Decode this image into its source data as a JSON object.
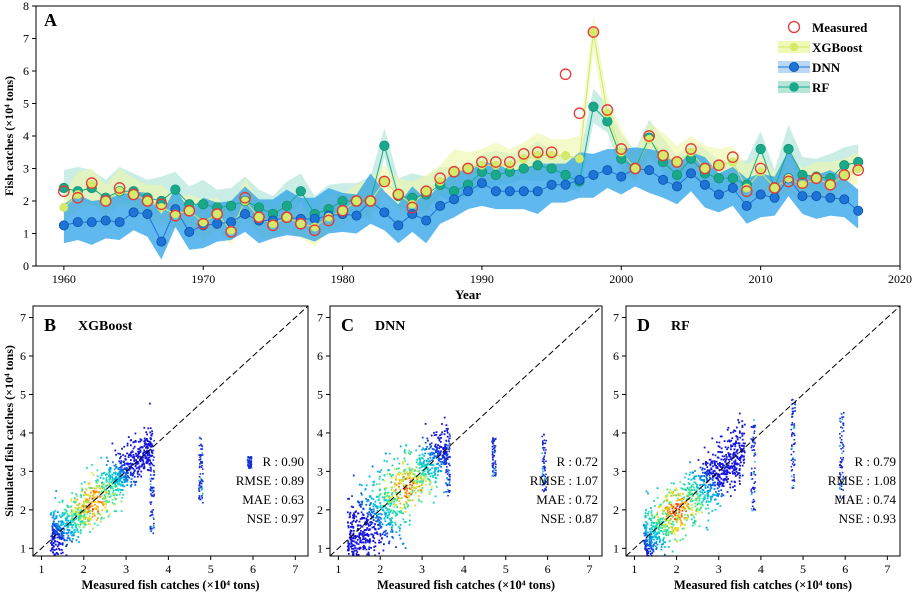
{
  "chart_data": [
    {
      "panel": "A",
      "type": "line",
      "xlabel": "Year",
      "ylabel": "Fish catches (×10⁴ tons)",
      "xlim": [
        1958,
        2020
      ],
      "ylim": [
        0,
        8
      ],
      "xticks": [
        1960,
        1970,
        1980,
        1990,
        2000,
        2010,
        2020
      ],
      "yticks": [
        0,
        1,
        2,
        3,
        4,
        5,
        6,
        7,
        8
      ],
      "x": [
        1960,
        1961,
        1962,
        1963,
        1964,
        1965,
        1966,
        1967,
        1968,
        1969,
        1970,
        1971,
        1972,
        1973,
        1974,
        1975,
        1976,
        1977,
        1978,
        1979,
        1980,
        1981,
        1982,
        1983,
        1984,
        1985,
        1986,
        1987,
        1988,
        1989,
        1990,
        1991,
        1992,
        1993,
        1994,
        1995,
        1996,
        1997,
        1998,
        1999,
        2000,
        2001,
        2002,
        2003,
        2004,
        2005,
        2006,
        2007,
        2008,
        2009,
        2010,
        2011,
        2012,
        2013,
        2014,
        2015,
        2016,
        2017
      ],
      "series": [
        {
          "name": "Measured",
          "color": "#e53935",
          "marker": "open-circle",
          "values": [
            2.3,
            2.1,
            2.55,
            2.0,
            2.4,
            2.2,
            2.0,
            1.9,
            1.55,
            1.7,
            1.3,
            1.6,
            1.05,
            2.1,
            1.5,
            1.25,
            1.5,
            1.3,
            1.1,
            1.4,
            1.7,
            2.0,
            2.0,
            2.6,
            2.2,
            1.8,
            2.3,
            2.7,
            2.9,
            3.0,
            3.2,
            3.2,
            3.2,
            3.45,
            3.5,
            3.5,
            5.9,
            4.7,
            7.2,
            4.8,
            3.6,
            3.0,
            4.0,
            3.4,
            3.2,
            3.6,
            3.0,
            3.1,
            3.35,
            2.3,
            3.0,
            2.4,
            2.6,
            2.55,
            2.7,
            2.5,
            2.8,
            2.95
          ]
        },
        {
          "name": "XGBoost",
          "color": "#d6ea6a",
          "marker": "filled-circle",
          "values": [
            1.8,
            2.2,
            2.5,
            2.0,
            2.3,
            2.2,
            2.0,
            1.8,
            1.6,
            1.7,
            1.35,
            1.6,
            1.1,
            2.0,
            1.5,
            1.3,
            1.5,
            1.3,
            1.2,
            1.5,
            1.7,
            2.0,
            2.0,
            2.6,
            2.2,
            1.9,
            2.3,
            2.6,
            2.9,
            3.0,
            3.1,
            3.1,
            3.1,
            3.3,
            3.4,
            3.4,
            3.4,
            3.3,
            7.2,
            4.7,
            3.5,
            3.0,
            3.9,
            3.4,
            3.2,
            3.5,
            3.0,
            3.1,
            3.2,
            2.4,
            2.9,
            2.4,
            2.7,
            2.5,
            2.7,
            2.5,
            2.8,
            3.0
          ]
        },
        {
          "name": "DNN",
          "color": "#1e73d6",
          "marker": "filled-circle",
          "values": [
            1.25,
            1.35,
            1.35,
            1.4,
            1.35,
            1.65,
            1.6,
            0.75,
            1.75,
            1.05,
            1.25,
            1.3,
            1.35,
            1.6,
            1.4,
            1.4,
            1.5,
            1.45,
            1.45,
            1.55,
            1.6,
            1.55,
            2.0,
            1.65,
            1.25,
            1.6,
            1.4,
            1.85,
            2.05,
            2.3,
            2.55,
            2.3,
            2.3,
            2.3,
            2.3,
            2.5,
            2.5,
            2.65,
            2.8,
            2.95,
            2.75,
            3.0,
            2.95,
            2.65,
            2.45,
            2.85,
            2.5,
            2.2,
            2.4,
            1.85,
            2.2,
            2.1,
            2.7,
            2.15,
            2.15,
            2.1,
            2.05,
            1.7
          ]
        },
        {
          "name": "RF",
          "color": "#19a88a",
          "marker": "filled-circle",
          "values": [
            2.4,
            2.3,
            2.4,
            2.1,
            2.3,
            2.3,
            2.1,
            2.0,
            2.35,
            1.9,
            1.9,
            1.8,
            1.85,
            2.0,
            1.8,
            1.6,
            1.85,
            2.3,
            1.6,
            1.75,
            2.0,
            2.0,
            2.0,
            3.7,
            2.15,
            2.1,
            2.2,
            2.5,
            2.3,
            2.5,
            2.9,
            2.8,
            2.9,
            3.0,
            3.1,
            3.0,
            2.8,
            2.6,
            4.9,
            4.45,
            3.3,
            3.0,
            3.95,
            3.2,
            2.8,
            3.3,
            2.85,
            2.7,
            2.7,
            2.5,
            3.6,
            2.4,
            3.6,
            2.8,
            2.75,
            2.7,
            3.1,
            3.2
          ]
        }
      ]
    },
    {
      "panel": "B",
      "type": "scatter",
      "title": "XGBoost",
      "xlabel": "Measured fish catches (×10⁴ tons)",
      "ylabel": "Simulated fish catches (×10⁴ tons)",
      "xlim": [
        0.8,
        7.3
      ],
      "ylim": [
        0.8,
        7.3
      ],
      "stats": {
        "R": "R : 0.90",
        "RMSE": "RMSE : 0.89",
        "MAE": "MAE : 0.63",
        "NSE": "NSE : 0.97"
      }
    },
    {
      "panel": "C",
      "type": "scatter",
      "title": "DNN",
      "xlabel": "Measured fish catches (×10⁴ tons)",
      "ylabel": "",
      "xlim": [
        0.8,
        7.3
      ],
      "ylim": [
        0.8,
        7.3
      ],
      "stats": {
        "R": "R : 0.72",
        "RMSE": "RMSE : 1.07",
        "MAE": "MAE : 0.72",
        "NSE": "NSE : 0.87"
      }
    },
    {
      "panel": "D",
      "type": "scatter",
      "title": "RF",
      "xlabel": "Measured fish catches (×10⁴ tons)",
      "ylabel": "",
      "xlim": [
        0.8,
        7.3
      ],
      "ylim": [
        0.8,
        7.3
      ],
      "stats": {
        "R": "R : 0.79",
        "RMSE": "RMSE : 1.08",
        "MAE": "MAE : 0.74",
        "NSE": "NSE : 0.93"
      }
    }
  ],
  "labels": {
    "panelA": "A",
    "panelB": "B",
    "panelC": "C",
    "panelD": "D",
    "yearLabel": "Year",
    "ylabelA": "Fish catches (×10⁴ tons)",
    "ylabelScatter": "Simulated fish catches (×10⁴ tons)",
    "xlabelScatter": "Measured fish catches (×10⁴ tons)"
  }
}
